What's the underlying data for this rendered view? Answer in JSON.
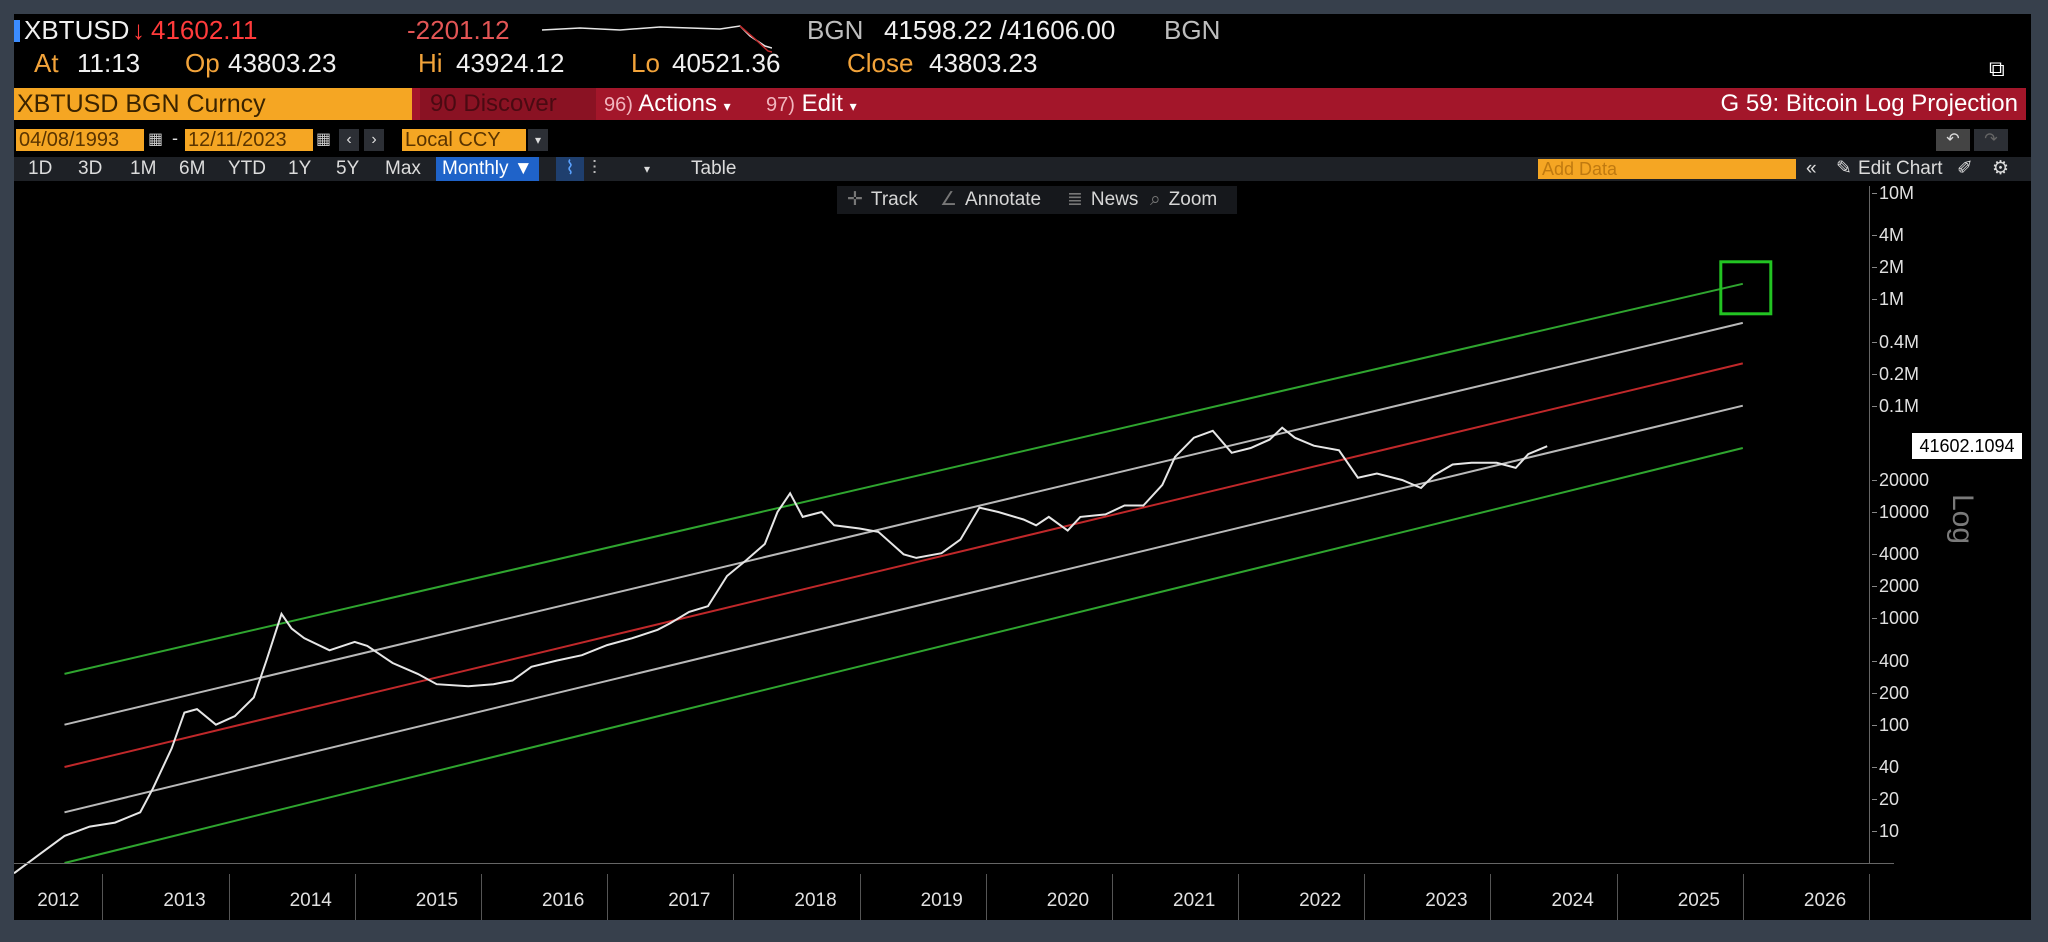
{
  "quote": {
    "ticker": "XBTUSD",
    "last": "41602.11",
    "change": "-2201.12",
    "bid_ask_source": "BGN",
    "bid_ask": "41598.22 /41606.00",
    "source2": "BGN",
    "at_label": "At",
    "at_time": "11:13",
    "op_label": "Op",
    "op": "43803.23",
    "hi_label": "Hi",
    "hi": "43924.12",
    "lo_label": "Lo",
    "lo": "40521.36",
    "close_label": "Close",
    "close": "43803.23"
  },
  "menubar": {
    "security": "XBTUSD BGN Curncy",
    "discover": "90 Discover",
    "actions_num": "96)",
    "actions": "Actions",
    "edit_num": "97)",
    "edit": "Edit",
    "title": "G 59: Bitcoin Log Projection"
  },
  "daterow": {
    "start": "04/08/1993",
    "dash": "-",
    "end": "12/11/2023",
    "currency": "Local CCY"
  },
  "toolbar": {
    "periods": [
      "1D",
      "3D",
      "1M",
      "6M",
      "YTD",
      "1Y",
      "5Y",
      "Max"
    ],
    "frequency": "Monthly",
    "table": "Table",
    "add_data": "Add Data",
    "edit_chart": "Edit Chart"
  },
  "tools": {
    "track": "Track",
    "annotate": "Annotate",
    "news": "News",
    "zoom": "Zoom"
  },
  "colors": {
    "accent_orange": "#f5a623",
    "menubar_red": "#a3162a",
    "channel_green": "#2fa52f",
    "channel_red": "#c0282a",
    "channel_gray": "#b9b9b9",
    "price_line": "#e6e6e6",
    "highlight_box": "#22c422"
  },
  "chart_data": {
    "type": "line",
    "title": "G 59: Bitcoin Log Projection",
    "yscale": "log",
    "ylabel": "Log",
    "y_ticks": [
      "10M",
      "4M",
      "2M",
      "1M",
      "0.4M",
      "0.2M",
      "0.1M",
      "20000",
      "10000",
      "4000",
      "2000",
      "1000",
      "400",
      "200",
      "100",
      "40",
      "20",
      "10"
    ],
    "x_ticks": [
      "2012",
      "2013",
      "2014",
      "2015",
      "2016",
      "2017",
      "2018",
      "2019",
      "2020",
      "2021",
      "2022",
      "2023",
      "2024",
      "2025",
      "2026"
    ],
    "last_value_label": "41602.1094",
    "xlim": [
      2011.8,
      2026.5
    ],
    "series": [
      {
        "values": [
          [
            2011.8,
            4
          ],
          [
            2012.0,
            6
          ],
          [
            2012.2,
            9
          ],
          [
            2012.4,
            11
          ],
          [
            2012.6,
            12
          ],
          [
            2012.8,
            15
          ],
          [
            2012.9,
            25
          ],
          [
            2013.05,
            60
          ],
          [
            2013.15,
            130
          ],
          [
            2013.25,
            140
          ],
          [
            2013.4,
            100
          ],
          [
            2013.55,
            120
          ],
          [
            2013.7,
            180
          ],
          [
            2013.8,
            400
          ],
          [
            2013.92,
            1100
          ],
          [
            2014.0,
            800
          ],
          [
            2014.1,
            650
          ],
          [
            2014.3,
            500
          ],
          [
            2014.5,
            600
          ],
          [
            2014.6,
            550
          ],
          [
            2014.8,
            380
          ],
          [
            2015.0,
            300
          ],
          [
            2015.15,
            240
          ],
          [
            2015.4,
            230
          ],
          [
            2015.6,
            240
          ],
          [
            2015.75,
            260
          ],
          [
            2015.9,
            350
          ],
          [
            2016.1,
            400
          ],
          [
            2016.3,
            450
          ],
          [
            2016.5,
            560
          ],
          [
            2016.7,
            650
          ],
          [
            2016.9,
            780
          ],
          [
            2017.0,
            900
          ],
          [
            2017.15,
            1150
          ],
          [
            2017.3,
            1300
          ],
          [
            2017.45,
            2500
          ],
          [
            2017.6,
            3500
          ],
          [
            2017.75,
            5000
          ],
          [
            2017.85,
            10000
          ],
          [
            2017.95,
            15000
          ],
          [
            2018.05,
            9000
          ],
          [
            2018.2,
            10000
          ],
          [
            2018.3,
            7500
          ],
          [
            2018.5,
            7000
          ],
          [
            2018.65,
            6500
          ],
          [
            2018.85,
            4000
          ],
          [
            2018.95,
            3700
          ],
          [
            2019.15,
            4100
          ],
          [
            2019.3,
            5500
          ],
          [
            2019.45,
            11000
          ],
          [
            2019.6,
            10000
          ],
          [
            2019.8,
            8500
          ],
          [
            2019.9,
            7500
          ],
          [
            2020.0,
            9000
          ],
          [
            2020.15,
            6700
          ],
          [
            2020.25,
            9000
          ],
          [
            2020.45,
            9500
          ],
          [
            2020.6,
            11500
          ],
          [
            2020.75,
            11500
          ],
          [
            2020.9,
            18000
          ],
          [
            2021.0,
            33000
          ],
          [
            2021.15,
            50000
          ],
          [
            2021.3,
            58000
          ],
          [
            2021.45,
            36000
          ],
          [
            2021.6,
            40000
          ],
          [
            2021.75,
            48000
          ],
          [
            2021.85,
            62000
          ],
          [
            2021.95,
            50000
          ],
          [
            2022.1,
            42000
          ],
          [
            2022.3,
            38000
          ],
          [
            2022.45,
            21000
          ],
          [
            2022.6,
            23000
          ],
          [
            2022.8,
            20000
          ],
          [
            2022.95,
            16800
          ],
          [
            2023.05,
            22000
          ],
          [
            2023.2,
            28000
          ],
          [
            2023.35,
            29000
          ],
          [
            2023.55,
            29000
          ],
          [
            2023.7,
            26000
          ],
          [
            2023.8,
            35000
          ],
          [
            2023.95,
            41602
          ]
        ]
      },
      {
        "values": [
          [
            2012.2,
            300
          ],
          [
            2025.5,
            1400000
          ]
        ]
      },
      {
        "values": [
          [
            2012.2,
            100
          ],
          [
            2025.5,
            600000
          ]
        ]
      },
      {
        "values": [
          [
            2012.2,
            40
          ],
          [
            2025.5,
            250000
          ]
        ]
      },
      {
        "values": [
          [
            2012.2,
            15
          ],
          [
            2025.5,
            100000
          ]
        ]
      },
      {
        "values": [
          [
            2012.2,
            5
          ],
          [
            2025.5,
            40000
          ]
        ]
      }
    ]
  }
}
